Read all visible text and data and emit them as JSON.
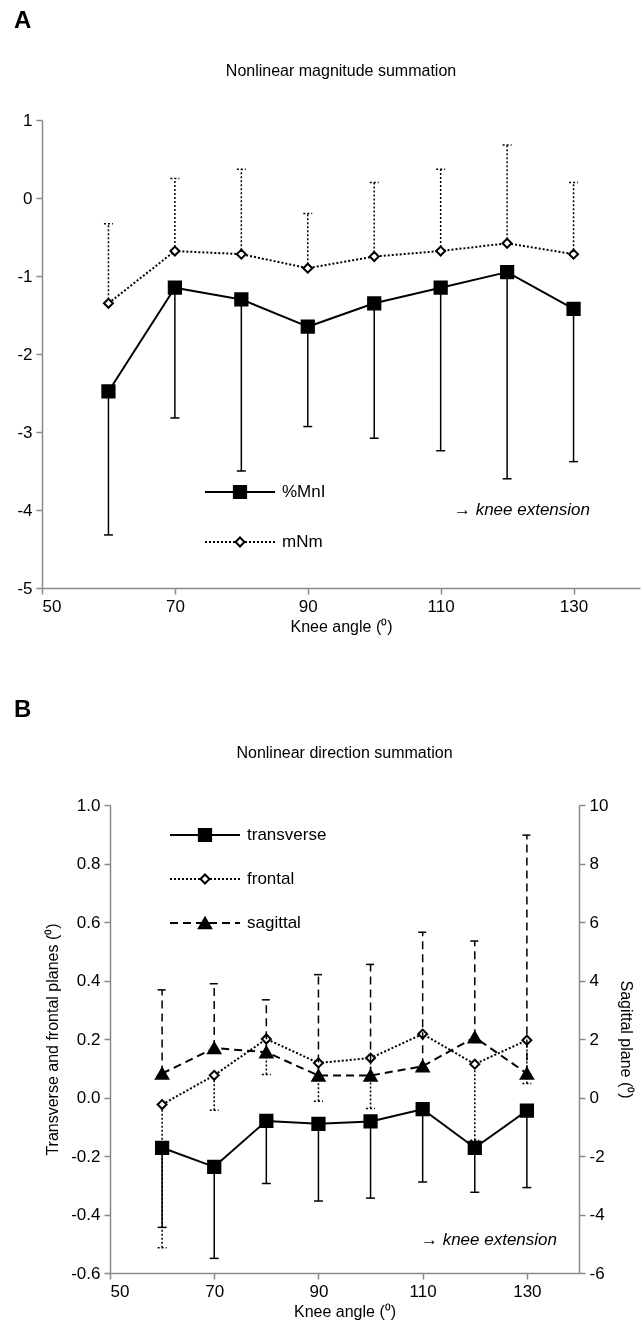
{
  "chart_data": [
    {
      "type": "line",
      "title": "Nonlinear magnitude summation",
      "xlabel": "Knee angle (⁰)",
      "annotations": [
        "A",
        "→ knee extension"
      ],
      "x": [
        60,
        70,
        80,
        90,
        100,
        110,
        120,
        130
      ],
      "xlim": [
        50,
        140
      ],
      "xticks": [
        50,
        70,
        90,
        110,
        130
      ],
      "ylim": [
        -5,
        1
      ],
      "yticks": [
        -5,
        -4,
        -3,
        -2,
        -1,
        0,
        1
      ],
      "grid": false,
      "legend": "bottom left",
      "series": [
        {
          "name": "%MnI",
          "color": "#000000",
          "marker": "square",
          "line_style": "solid",
          "values": [
            -2.48,
            -1.15,
            -1.3,
            -1.65,
            -1.35,
            -1.15,
            -0.95,
            -1.42
          ],
          "errors": [
            [
              -4.32,
              -2.48
            ],
            [
              -2.82,
              -1.15
            ],
            [
              -3.5,
              -1.3
            ],
            [
              -2.93,
              -1.65
            ],
            [
              -3.08,
              -1.35
            ],
            [
              -3.24,
              -1.15
            ],
            [
              -3.6,
              -0.95
            ],
            [
              -3.38,
              -1.42
            ]
          ]
        },
        {
          "name": "mNm",
          "color": "#000000",
          "marker": "diamond",
          "line_style": "dotted",
          "values": [
            -1.35,
            -0.68,
            -0.72,
            -0.9,
            -0.75,
            -0.68,
            -0.58,
            -0.72
          ],
          "errors": [
            [
              -1.35,
              -0.33
            ],
            [
              -0.68,
              0.25
            ],
            [
              -0.72,
              0.37
            ],
            [
              -0.9,
              -0.2
            ],
            [
              -0.75,
              0.2
            ],
            [
              -0.68,
              0.37
            ],
            [
              -0.58,
              0.68
            ],
            [
              -0.72,
              0.2
            ]
          ]
        }
      ]
    },
    {
      "type": "line",
      "title": "Nonlinear direction summation",
      "xlabel": "Knee angle (⁰)",
      "ylabel": "Transverse and frontal planes (⁰)",
      "y2label": "Sagittal plane (⁰)",
      "annotations": [
        "B",
        "→ knee extension"
      ],
      "x": [
        60,
        70,
        80,
        90,
        100,
        110,
        120,
        130
      ],
      "xlim": [
        50,
        140
      ],
      "xticks": [
        50,
        70,
        90,
        110,
        130
      ],
      "ylim": [
        -0.6,
        1
      ],
      "yticks": [
        {
          "value": -0.6,
          "label": "-0.6"
        },
        {
          "value": -0.4,
          "label": "-0.4"
        },
        {
          "value": -0.2,
          "label": "-0.2"
        },
        {
          "value": 0,
          "label": "0.0"
        },
        {
          "value": 0.2,
          "label": "0.2"
        },
        {
          "value": 0.4,
          "label": "0.4"
        },
        {
          "value": 0.6,
          "label": "0.6"
        },
        {
          "value": 0.8,
          "label": "0.8"
        },
        {
          "value": 1,
          "label": "1.0"
        }
      ],
      "y2lim": [
        -6,
        10
      ],
      "y2ticks": [
        -6,
        -4,
        -2,
        0,
        2,
        4,
        6,
        8,
        10
      ],
      "grid": false,
      "legend": "top left",
      "series": [
        {
          "name": "transverse",
          "color": "#000000",
          "marker": "square",
          "line_style": "solid",
          "values": [
            -0.172,
            -0.237,
            -0.08,
            -0.09,
            -0.082,
            -0.04,
            -0.172,
            -0.045
          ],
          "errors": [
            [
              -0.444,
              -0.172
            ],
            [
              -0.55,
              -0.237
            ],
            [
              -0.294,
              -0.08
            ],
            [
              -0.354,
              -0.09
            ],
            [
              -0.344,
              -0.082
            ],
            [
              -0.289,
              -0.04
            ],
            [
              -0.324,
              -0.172
            ],
            [
              -0.308,
              -0.045
            ]
          ]
        },
        {
          "name": "frontal",
          "color": "#000000",
          "marker": "diamond",
          "line_style": "dotted",
          "values": [
            -0.024,
            0.076,
            0.2,
            0.118,
            0.135,
            0.217,
            0.114,
            0.196
          ],
          "errors": [
            [
              -0.514,
              -0.024
            ],
            [
              -0.044,
              0.076
            ],
            [
              0.079,
              0.2
            ],
            [
              -0.013,
              0.118
            ],
            [
              -0.038,
              0.135
            ],
            null,
            [
              -0.146,
              0.114
            ],
            [
              0.048,
              0.196
            ]
          ]
        },
        {
          "name": "sagittal",
          "color": "#000000",
          "marker": "triangle",
          "line_style": "dashed",
          "axis": "y2",
          "values": [
            0.82,
            1.69,
            1.55,
            0.75,
            0.75,
            1.07,
            2.06,
            0.82
          ],
          "errors": [
            [
              0.82,
              3.68
            ],
            [
              1.69,
              3.89
            ],
            [
              1.55,
              3.34
            ],
            [
              0.75,
              4.2
            ],
            [
              0.75,
              4.55
            ],
            [
              1.07,
              5.65
            ],
            [
              2.06,
              5.35
            ],
            [
              0.82,
              8.97
            ]
          ]
        }
      ]
    }
  ]
}
